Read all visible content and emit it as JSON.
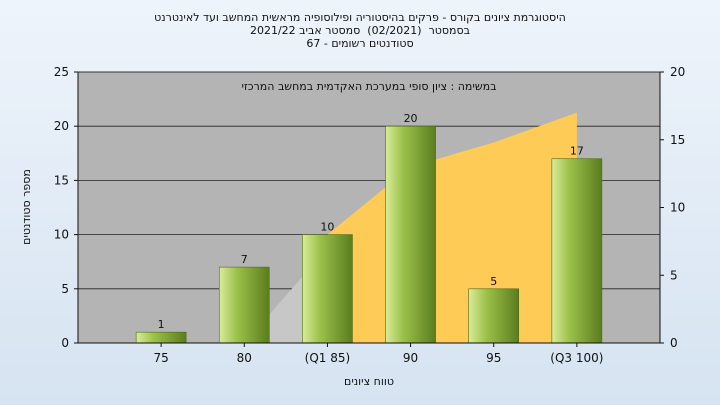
{
  "chart_data": {
    "type": "bar",
    "title_lines": [
      "היסטוגרמת ציונים בקורס - פרקים בהיסטוריה ופילוסופיה מראשית המחשב ועד לאינטרנט",
      "בסמסטר  (02/2021)  סמסטר אביב 2021/22",
      "סטודנטים רשומים - 67"
    ],
    "annotation": "במשימה : ציון סופי במערכת האקדמית במחשב המרכזי",
    "categories": [
      "75",
      "80",
      "(Q1 85)",
      "90",
      "95",
      "(Q3 100)"
    ],
    "values": [
      1,
      7,
      10,
      20,
      5,
      17
    ],
    "ylabel": "מספר סטודנטים",
    "xlabel": "טווח ציונים",
    "ylim": [
      0,
      25
    ],
    "yticks": [
      0,
      5,
      10,
      15,
      20,
      25
    ],
    "y2lim": [
      0,
      20
    ],
    "y2ticks": [
      0,
      5,
      10,
      15,
      20
    ],
    "cumulative_area": {
      "gray_x": [
        2,
        3
      ],
      "gray_y": [
        0,
        7
      ],
      "orange_x": [
        3,
        4,
        5,
        6
      ],
      "orange_y": [
        8,
        13,
        14.8,
        17
      ]
    },
    "colors": {
      "plot_background": "#b4b4b4",
      "bar_light": "#d9ec9a",
      "bar_mid": "#9cc14a",
      "bar_dark": "#5a7d1e",
      "area_orange": "#ffcb57",
      "area_gray": "#c7c7c7"
    },
    "grid": true
  }
}
